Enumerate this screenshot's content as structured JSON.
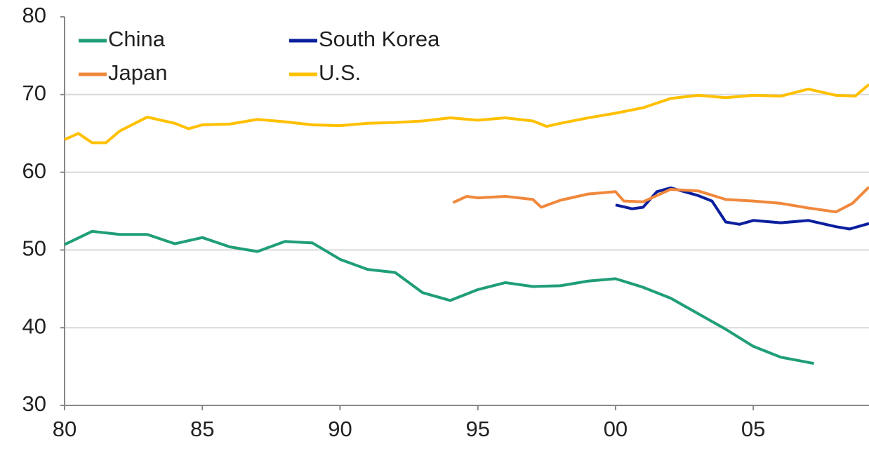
{
  "chart_data": {
    "type": "line",
    "xlim": [
      1980,
      2009.2
    ],
    "xticks": [
      {
        "value": 1980,
        "label": "80"
      },
      {
        "value": 1985,
        "label": "85"
      },
      {
        "value": 1990,
        "label": "90"
      },
      {
        "value": 1995,
        "label": "95"
      },
      {
        "value": 2000,
        "label": "00"
      },
      {
        "value": 2005,
        "label": "05"
      }
    ],
    "ylim": [
      30,
      80
    ],
    "yticks": [
      30,
      40,
      50,
      60,
      70,
      80
    ],
    "grid": true,
    "legend": "upper left",
    "series": [
      {
        "name": "China",
        "color": "#1f9e78",
        "x": [
          1980,
          1981,
          1982,
          1983,
          1984,
          1985,
          1986,
          1987,
          1988,
          1989,
          1990,
          1991,
          1992,
          1993,
          1994,
          1995,
          1996,
          1997,
          1998,
          1999,
          2000,
          2001,
          2002,
          2003,
          2004,
          2005,
          2006,
          2007.2
        ],
        "values": [
          50.7,
          52.4,
          52,
          52,
          50.8,
          51.6,
          50.4,
          49.8,
          51.1,
          50.9,
          48.8,
          47.5,
          47.1,
          44.5,
          43.5,
          44.9,
          45.8,
          45.3,
          45.4,
          46,
          46.3,
          45.2,
          43.8,
          41.8,
          39.8,
          37.6,
          36.2,
          35.4
        ]
      },
      {
        "name": "South Korea",
        "color": "#0b1f9e",
        "x": [
          2000,
          2000.6,
          2001,
          2001.5,
          2002,
          2002.5,
          2003,
          2003.5,
          2004,
          2004.5,
          2005,
          2006,
          2007,
          2008,
          2008.5,
          2009.2
        ],
        "values": [
          55.8,
          55.3,
          55.5,
          57.5,
          58,
          57.5,
          57,
          56.3,
          53.6,
          53.3,
          53.8,
          53.5,
          53.8,
          53,
          52.7,
          53.4
        ]
      },
      {
        "name": "Japan",
        "color": "#f0883c",
        "x": [
          1994.1,
          1994.6,
          1995,
          1996,
          1997,
          1997.3,
          1998,
          1999,
          2000,
          2000.3,
          2001,
          2002,
          2003,
          2004,
          2005,
          2006,
          2007,
          2008,
          2008.6,
          2009.2
        ],
        "values": [
          56.1,
          56.9,
          56.7,
          56.9,
          56.5,
          55.5,
          56.4,
          57.2,
          57.5,
          56.3,
          56.2,
          57.8,
          57.6,
          56.5,
          56.3,
          56,
          55.4,
          54.9,
          56,
          58.1
        ]
      },
      {
        "name": "U.S.",
        "color": "#ffc000",
        "x": [
          1980,
          1980.5,
          1981,
          1981.5,
          1982,
          1983,
          1984,
          1984.5,
          1985,
          1986,
          1987,
          1988,
          1989,
          1990,
          1991,
          1992,
          1993,
          1994,
          1995,
          1996,
          1997,
          1997.5,
          1998,
          1999,
          2000,
          2001,
          2002,
          2003,
          2004,
          2005,
          2006,
          2007,
          2008,
          2008.7,
          2009.2
        ],
        "values": [
          64.2,
          65,
          63.8,
          63.8,
          65.3,
          67.1,
          66.3,
          65.6,
          66.1,
          66.2,
          66.8,
          66.5,
          66.1,
          66,
          66.3,
          66.4,
          66.6,
          67,
          66.7,
          67,
          66.6,
          65.9,
          66.3,
          67,
          67.6,
          68.3,
          69.5,
          69.9,
          69.6,
          69.9,
          69.8,
          70.7,
          69.9,
          69.8,
          71.3
        ]
      }
    ]
  }
}
